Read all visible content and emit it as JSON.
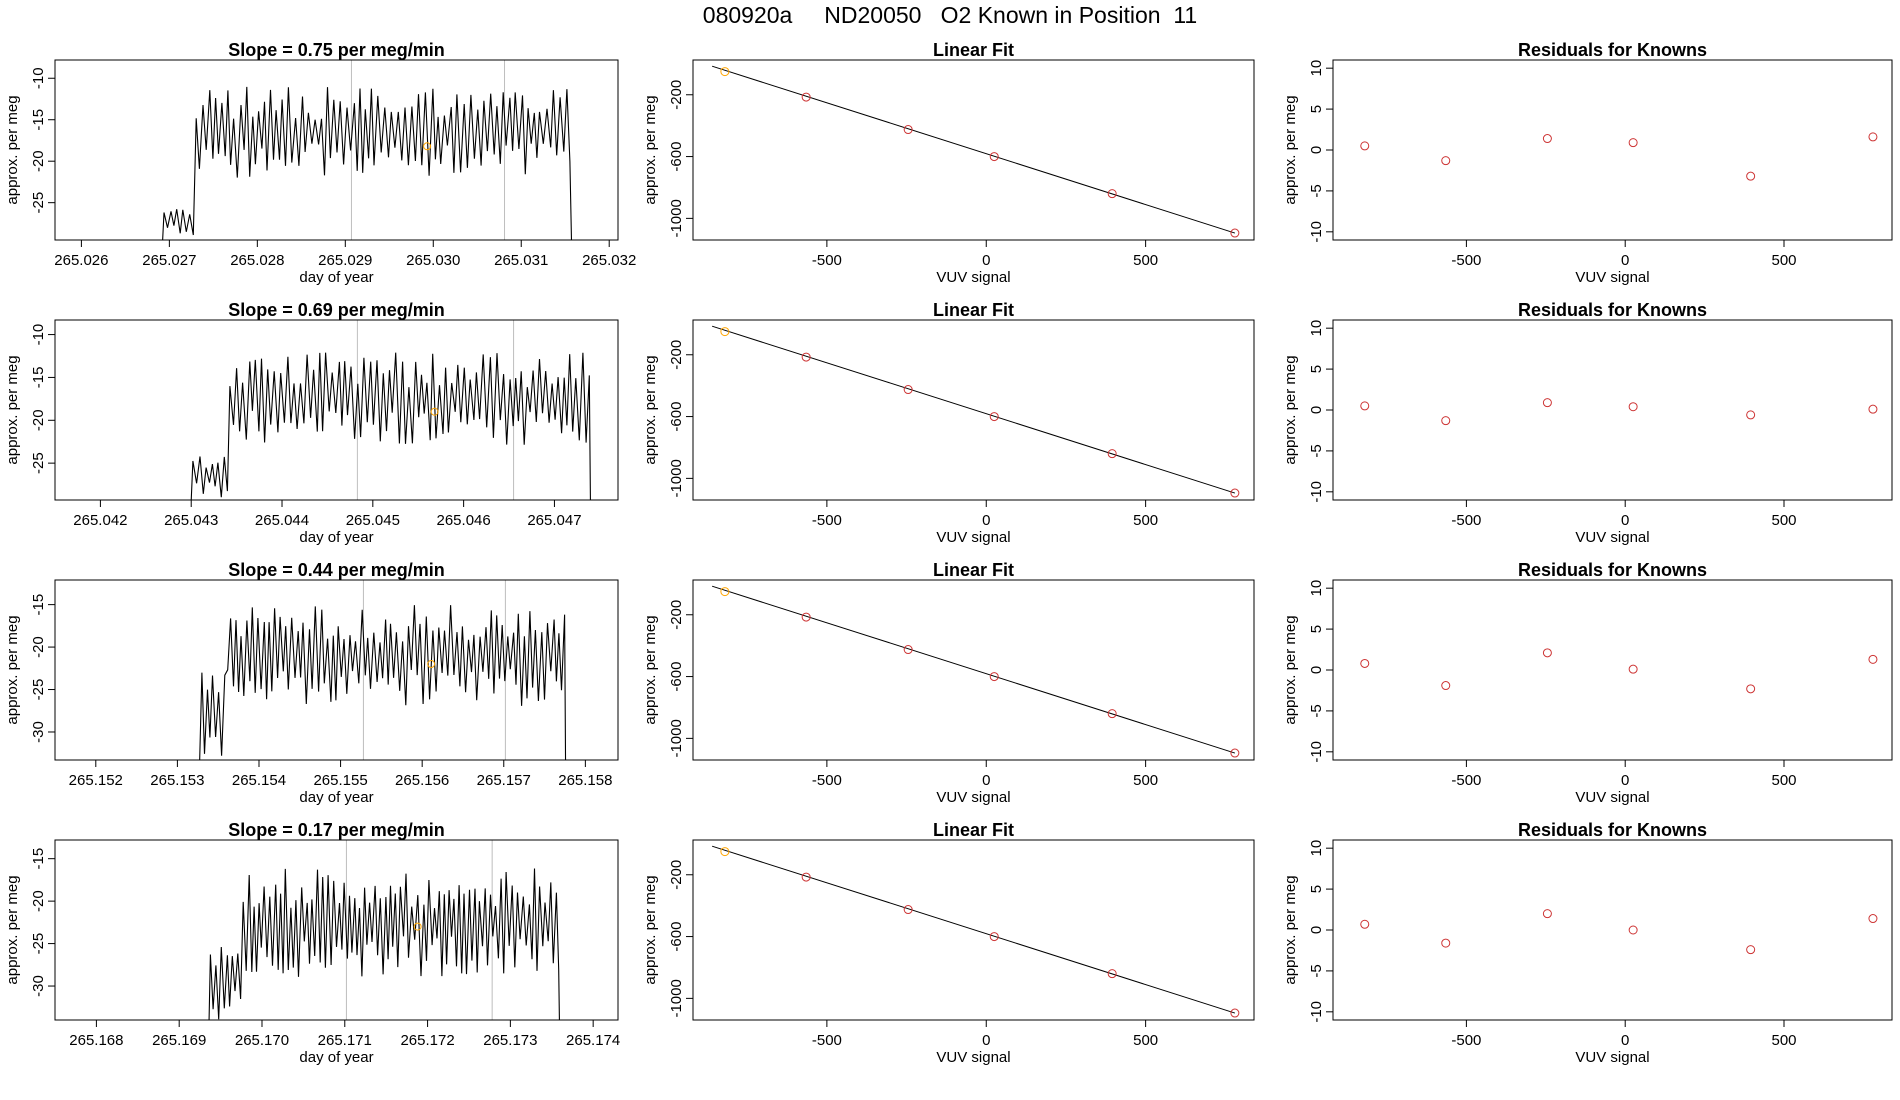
{
  "title": "080920a     ND20050   O2 Known in Position  11",
  "colors": {
    "trace": "#000000",
    "marker": "#FFA500",
    "fit_points": "#CD3333",
    "vline": "#BEBEBE"
  },
  "chart_data": [
    {
      "panel": "timeseries",
      "row": 1,
      "type": "line",
      "title": "Slope =  0.75  per meg/min",
      "xlabel": "day of year",
      "ylabel": "approx. per meg",
      "xlim": [
        265.0257,
        265.0321
      ],
      "ylim": [
        -29.5,
        -7.8
      ],
      "xticks": [
        "265.026",
        "265.027",
        "265.028",
        "265.029",
        "265.030",
        "265.031",
        "265.032"
      ],
      "yticks": [
        "-10",
        "-15",
        "-20",
        "-25"
      ],
      "vlines": [
        265.02907,
        265.03081
      ],
      "marker": {
        "x": 265.02993,
        "y": -18.2
      },
      "x_start": 265.0269,
      "x_end": 265.03158,
      "segments": [
        {
          "to": 265.0273,
          "min": -29,
          "max": -25
        },
        {
          "to": 265.03155,
          "min": -22,
          "max": -11
        }
      ]
    },
    {
      "panel": "fit",
      "row": 1,
      "type": "scatter",
      "title": "Linear Fit",
      "xlabel": "VUV signal",
      "ylabel": "approx. per meg",
      "xlim": [
        -920,
        840
      ],
      "ylim": [
        -1140,
        25
      ],
      "xticks": [
        "-500",
        "0",
        "500"
      ],
      "yticks": [
        "-200",
        "-600",
        "-1000"
      ],
      "x": [
        -820,
        -565,
        -245,
        25,
        395,
        780
      ],
      "y": [
        -50,
        -215,
        -425,
        -600,
        -840,
        -1095
      ],
      "line": {
        "x": [
          -860,
          780
        ],
        "y": [
          -15,
          -1095
        ]
      },
      "first_point_color": "#FFA500"
    },
    {
      "panel": "residuals",
      "row": 1,
      "type": "scatter",
      "title": "Residuals for Knowns",
      "xlabel": "VUV signal",
      "ylabel": "approx. per meg",
      "xlim": [
        -920,
        840
      ],
      "ylim": [
        -11,
        11
      ],
      "xticks": [
        "-500",
        "0",
        "500"
      ],
      "yticks": [
        "10",
        "5",
        "0",
        "-5",
        "-10"
      ],
      "x": [
        -820,
        -565,
        -245,
        25,
        395,
        780
      ],
      "y": [
        0.5,
        -1.3,
        1.4,
        0.9,
        -3.2,
        1.6
      ]
    },
    {
      "panel": "timeseries",
      "row": 2,
      "type": "line",
      "title": "Slope =  0.69  per meg/min",
      "xlabel": "day of year",
      "ylabel": "approx. per meg",
      "xlim": [
        265.0415,
        265.0477
      ],
      "ylim": [
        -29.3,
        -8.3
      ],
      "xticks": [
        "265.042",
        "265.043",
        "265.044",
        "265.045",
        "265.046",
        "265.047"
      ],
      "yticks": [
        "-10",
        "-15",
        "-20",
        "-25"
      ],
      "vlines": [
        265.04483,
        265.04655
      ],
      "marker": {
        "x": 265.04568,
        "y": -19.0
      },
      "x_start": 265.04298,
      "x_end": 265.0474,
      "segments": [
        {
          "to": 265.0434,
          "min": -29,
          "max": -24
        },
        {
          "to": 265.04735,
          "min": -23,
          "max": -12
        }
      ]
    },
    {
      "panel": "fit",
      "row": 2,
      "type": "scatter",
      "title": "Linear Fit",
      "xlabel": "VUV signal",
      "ylabel": "approx. per meg",
      "xlim": [
        -920,
        840
      ],
      "ylim": [
        -1140,
        25
      ],
      "xticks": [
        "-500",
        "0",
        "500"
      ],
      "yticks": [
        "-200",
        "-600",
        "-1000"
      ],
      "x": [
        -820,
        -565,
        -245,
        25,
        395,
        780
      ],
      "y": [
        -50,
        -215,
        -425,
        -600,
        -840,
        -1095
      ],
      "line": {
        "x": [
          -860,
          780
        ],
        "y": [
          -15,
          -1095
        ]
      },
      "first_point_color": "#FFA500"
    },
    {
      "panel": "residuals",
      "row": 2,
      "type": "scatter",
      "title": "Residuals for Knowns",
      "xlabel": "VUV signal",
      "ylabel": "approx. per meg",
      "xlim": [
        -920,
        840
      ],
      "ylim": [
        -11,
        11
      ],
      "xticks": [
        "-500",
        "0",
        "500"
      ],
      "yticks": [
        "10",
        "5",
        "0",
        "-5",
        "-10"
      ],
      "x": [
        -820,
        -565,
        -245,
        25,
        395,
        780
      ],
      "y": [
        0.5,
        -1.3,
        0.9,
        0.4,
        -0.6,
        0.1
      ]
    },
    {
      "panel": "timeseries",
      "row": 3,
      "type": "line",
      "title": "Slope =  0.44  per meg/min",
      "xlabel": "day of year",
      "ylabel": "approx. per meg",
      "xlim": [
        265.1515,
        265.1584
      ],
      "ylim": [
        -33.3,
        -12.1
      ],
      "xticks": [
        "265.152",
        "265.153",
        "265.154",
        "265.155",
        "265.156",
        "265.157",
        "265.158"
      ],
      "yticks": [
        "-15",
        "-20",
        "-25",
        "-30"
      ],
      "vlines": [
        265.15528,
        265.15702
      ],
      "marker": {
        "x": 265.15611,
        "y": -22.0
      },
      "x_start": 265.15326,
      "x_end": 265.15776,
      "segments": [
        {
          "to": 265.1536,
          "min": -33,
          "max": -23
        },
        {
          "to": 265.1577,
          "min": -27,
          "max": -15
        }
      ]
    },
    {
      "panel": "fit",
      "row": 3,
      "type": "scatter",
      "title": "Linear Fit",
      "xlabel": "VUV signal",
      "ylabel": "approx. per meg",
      "xlim": [
        -920,
        840
      ],
      "ylim": [
        -1140,
        25
      ],
      "xticks": [
        "-500",
        "0",
        "500"
      ],
      "yticks": [
        "-200",
        "-600",
        "-1000"
      ],
      "x": [
        -820,
        -565,
        -245,
        25,
        395,
        780
      ],
      "y": [
        -50,
        -215,
        -425,
        -600,
        -840,
        -1095
      ],
      "line": {
        "x": [
          -860,
          780
        ],
        "y": [
          -15,
          -1095
        ]
      },
      "first_point_color": "#FFA500"
    },
    {
      "panel": "residuals",
      "row": 3,
      "type": "scatter",
      "title": "Residuals for Knowns",
      "xlabel": "VUV signal",
      "ylabel": "approx. per meg",
      "xlim": [
        -920,
        840
      ],
      "ylim": [
        -11,
        11
      ],
      "xticks": [
        "-500",
        "0",
        "500"
      ],
      "yticks": [
        "10",
        "5",
        "0",
        "-5",
        "-10"
      ],
      "x": [
        -820,
        -565,
        -245,
        25,
        395,
        780
      ],
      "y": [
        0.8,
        -1.9,
        2.1,
        0.1,
        -2.3,
        1.3
      ]
    },
    {
      "panel": "timeseries",
      "row": 4,
      "type": "line",
      "title": "Slope =  0.17  per meg/min",
      "xlabel": "day of year",
      "ylabel": "approx. per meg",
      "xlim": [
        265.1675,
        265.1743
      ],
      "ylim": [
        -34.0,
        -12.8
      ],
      "xticks": [
        "265.168",
        "265.169",
        "265.170",
        "265.171",
        "265.172",
        "265.173",
        "265.174"
      ],
      "yticks": [
        "-15",
        "-20",
        "-25",
        "-30"
      ],
      "vlines": [
        265.17102,
        265.17278
      ],
      "marker": {
        "x": 265.17188,
        "y": -23.0
      },
      "x_start": 265.16935,
      "x_end": 265.1736,
      "segments": [
        {
          "to": 265.16975,
          "min": -34,
          "max": -24
        },
        {
          "to": 265.1735,
          "min": -29,
          "max": -16
        }
      ]
    },
    {
      "panel": "fit",
      "row": 4,
      "type": "scatter",
      "title": "Linear Fit",
      "xlabel": "VUV signal",
      "ylabel": "approx. per meg",
      "xlim": [
        -920,
        840
      ],
      "ylim": [
        -1140,
        25
      ],
      "xticks": [
        "-500",
        "0",
        "500"
      ],
      "yticks": [
        "-200",
        "-600",
        "-1000"
      ],
      "x": [
        -820,
        -565,
        -245,
        25,
        395,
        780
      ],
      "y": [
        -50,
        -215,
        -425,
        -600,
        -840,
        -1095
      ],
      "line": {
        "x": [
          -860,
          780
        ],
        "y": [
          -15,
          -1095
        ]
      },
      "first_point_color": "#FFA500"
    },
    {
      "panel": "residuals",
      "row": 4,
      "type": "scatter",
      "title": "Residuals for Knowns",
      "xlabel": "VUV signal",
      "ylabel": "approx. per meg",
      "xlim": [
        -920,
        840
      ],
      "ylim": [
        -11,
        11
      ],
      "xticks": [
        "-500",
        "0",
        "500"
      ],
      "yticks": [
        "10",
        "5",
        "0",
        "-5",
        "-10"
      ],
      "x": [
        -820,
        -565,
        -245,
        25,
        395,
        780
      ],
      "y": [
        0.7,
        -1.6,
        2.0,
        0.0,
        -2.4,
        1.4
      ]
    }
  ]
}
